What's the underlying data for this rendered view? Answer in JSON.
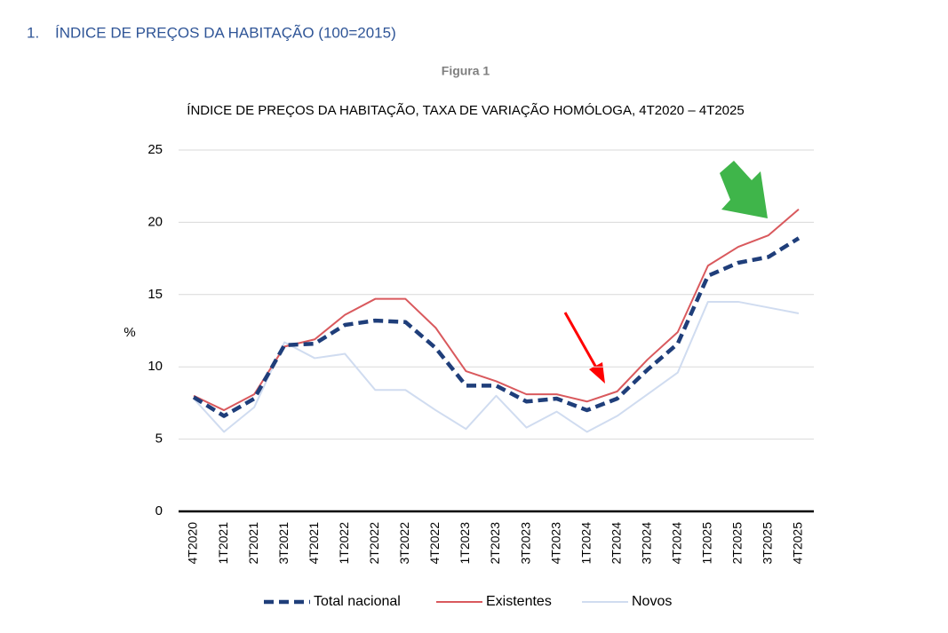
{
  "heading": {
    "number": "1.",
    "text": "ÍNDICE DE PREÇOS DA HABITAÇÃO (100=2015)"
  },
  "figure_label": "Figura 1",
  "chart_data": {
    "type": "line",
    "title": "ÍNDICE DE PREÇOS DA HABITAÇÃO, TAXA DE VARIAÇÃO HOMÓLOGA, 4T2020 – 4T2025",
    "y_label": "%",
    "categories": [
      "4T2020",
      "1T2021",
      "2T2021",
      "3T2021",
      "4T2021",
      "1T2022",
      "2T2022",
      "3T2022",
      "4T2022",
      "1T2023",
      "2T2023",
      "3T2023",
      "4T2023",
      "1T2024",
      "2T2024",
      "3T2024",
      "4T2024",
      "1T2025",
      "2T2025",
      "3T2025",
      "4T2025"
    ],
    "series": [
      {
        "name": "Total nacional",
        "color": "#1f3e7a",
        "dashed": true,
        "values": [
          7.9,
          6.6,
          7.8,
          11.5,
          11.6,
          12.9,
          13.2,
          13.1,
          11.3,
          8.7,
          8.7,
          7.6,
          7.8,
          7.0,
          7.8,
          9.8,
          11.6,
          16.3,
          17.2,
          17.6,
          18.9
        ]
      },
      {
        "name": "Existentes",
        "color": "#d9595d",
        "dashed": false,
        "values": [
          8.0,
          7.0,
          8.1,
          11.4,
          11.9,
          13.6,
          14.7,
          14.7,
          12.7,
          9.7,
          9.0,
          8.1,
          8.1,
          7.6,
          8.3,
          10.5,
          12.4,
          17.0,
          18.3,
          19.1,
          20.9
        ]
      },
      {
        "name": "Novos",
        "color": "#d0dcf0",
        "dashed": false,
        "values": [
          7.8,
          5.5,
          7.2,
          11.7,
          10.6,
          10.9,
          8.4,
          8.4,
          7.0,
          5.7,
          8.0,
          5.8,
          6.9,
          5.5,
          6.6,
          8.1,
          9.6,
          14.5,
          14.5,
          14.1,
          13.7
        ]
      }
    ],
    "ylim": [
      0,
      25
    ],
    "yticks": [
      0,
      5,
      10,
      15,
      20,
      25
    ],
    "grid": true
  }
}
